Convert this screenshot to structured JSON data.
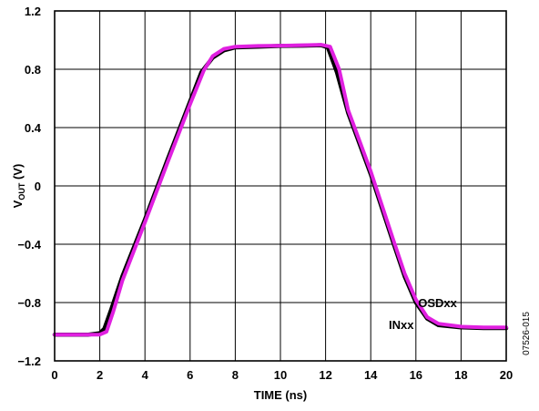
{
  "chart_data": {
    "type": "line",
    "title": "",
    "xlabel": "TIME (ns)",
    "ylabel_main": "V",
    "ylabel_sub": "OUT",
    "ylabel_unit": " (V)",
    "xlim": [
      0,
      20
    ],
    "ylim": [
      -1.2,
      1.2
    ],
    "xticks": [
      0,
      2,
      4,
      6,
      8,
      10,
      12,
      14,
      16,
      18,
      20
    ],
    "xtick_labels": [
      "0",
      "2",
      "4",
      "6",
      "8",
      "10",
      "12",
      "14",
      "16",
      "18",
      "20"
    ],
    "yticks": [
      -1.2,
      -0.8,
      -0.4,
      0,
      0.4,
      0.8,
      1.2
    ],
    "ytick_labels": [
      "−1.2",
      "−0.8",
      "−0.4",
      "0",
      "0.4",
      "0.8",
      "1.2"
    ],
    "grid": true,
    "figure_id": "07526-015",
    "series": [
      {
        "name": "INxx",
        "color": "#000000",
        "x": [
          0,
          1.5,
          2.0,
          2.2,
          2.5,
          3.0,
          4.0,
          5.0,
          6.0,
          6.5,
          7.0,
          7.5,
          8.0,
          9.0,
          10.0,
          11.0,
          11.8,
          12.1,
          12.5,
          13.0,
          14.0,
          15.0,
          15.5,
          16.0,
          16.5,
          17.0,
          18.0,
          19.0,
          20.0
        ],
        "y": [
          -1.02,
          -1.02,
          -1.01,
          -0.98,
          -0.85,
          -0.62,
          -0.23,
          0.18,
          0.58,
          0.78,
          0.88,
          0.93,
          0.95,
          0.955,
          0.96,
          0.962,
          0.965,
          0.95,
          0.78,
          0.5,
          0.08,
          -0.39,
          -0.62,
          -0.8,
          -0.91,
          -0.955,
          -0.97,
          -0.975,
          -0.975
        ]
      },
      {
        "name": "OSDxx",
        "color": "#e020e0",
        "x": [
          0,
          1.5,
          2.0,
          2.3,
          2.6,
          3.0,
          4.0,
          5.0,
          6.0,
          6.6,
          7.0,
          7.5,
          8.0,
          9.0,
          10.0,
          11.0,
          11.8,
          12.2,
          12.6,
          13.0,
          14.0,
          15.0,
          15.5,
          16.0,
          16.5,
          17.0,
          18.0,
          19.0,
          20.0
        ],
        "y": [
          -1.02,
          -1.02,
          -1.02,
          -1.0,
          -0.86,
          -0.65,
          -0.25,
          0.16,
          0.56,
          0.79,
          0.89,
          0.94,
          0.955,
          0.96,
          0.962,
          0.965,
          0.968,
          0.955,
          0.8,
          0.52,
          0.1,
          -0.37,
          -0.6,
          -0.78,
          -0.9,
          -0.945,
          -0.965,
          -0.97,
          -0.97
        ]
      }
    ]
  }
}
